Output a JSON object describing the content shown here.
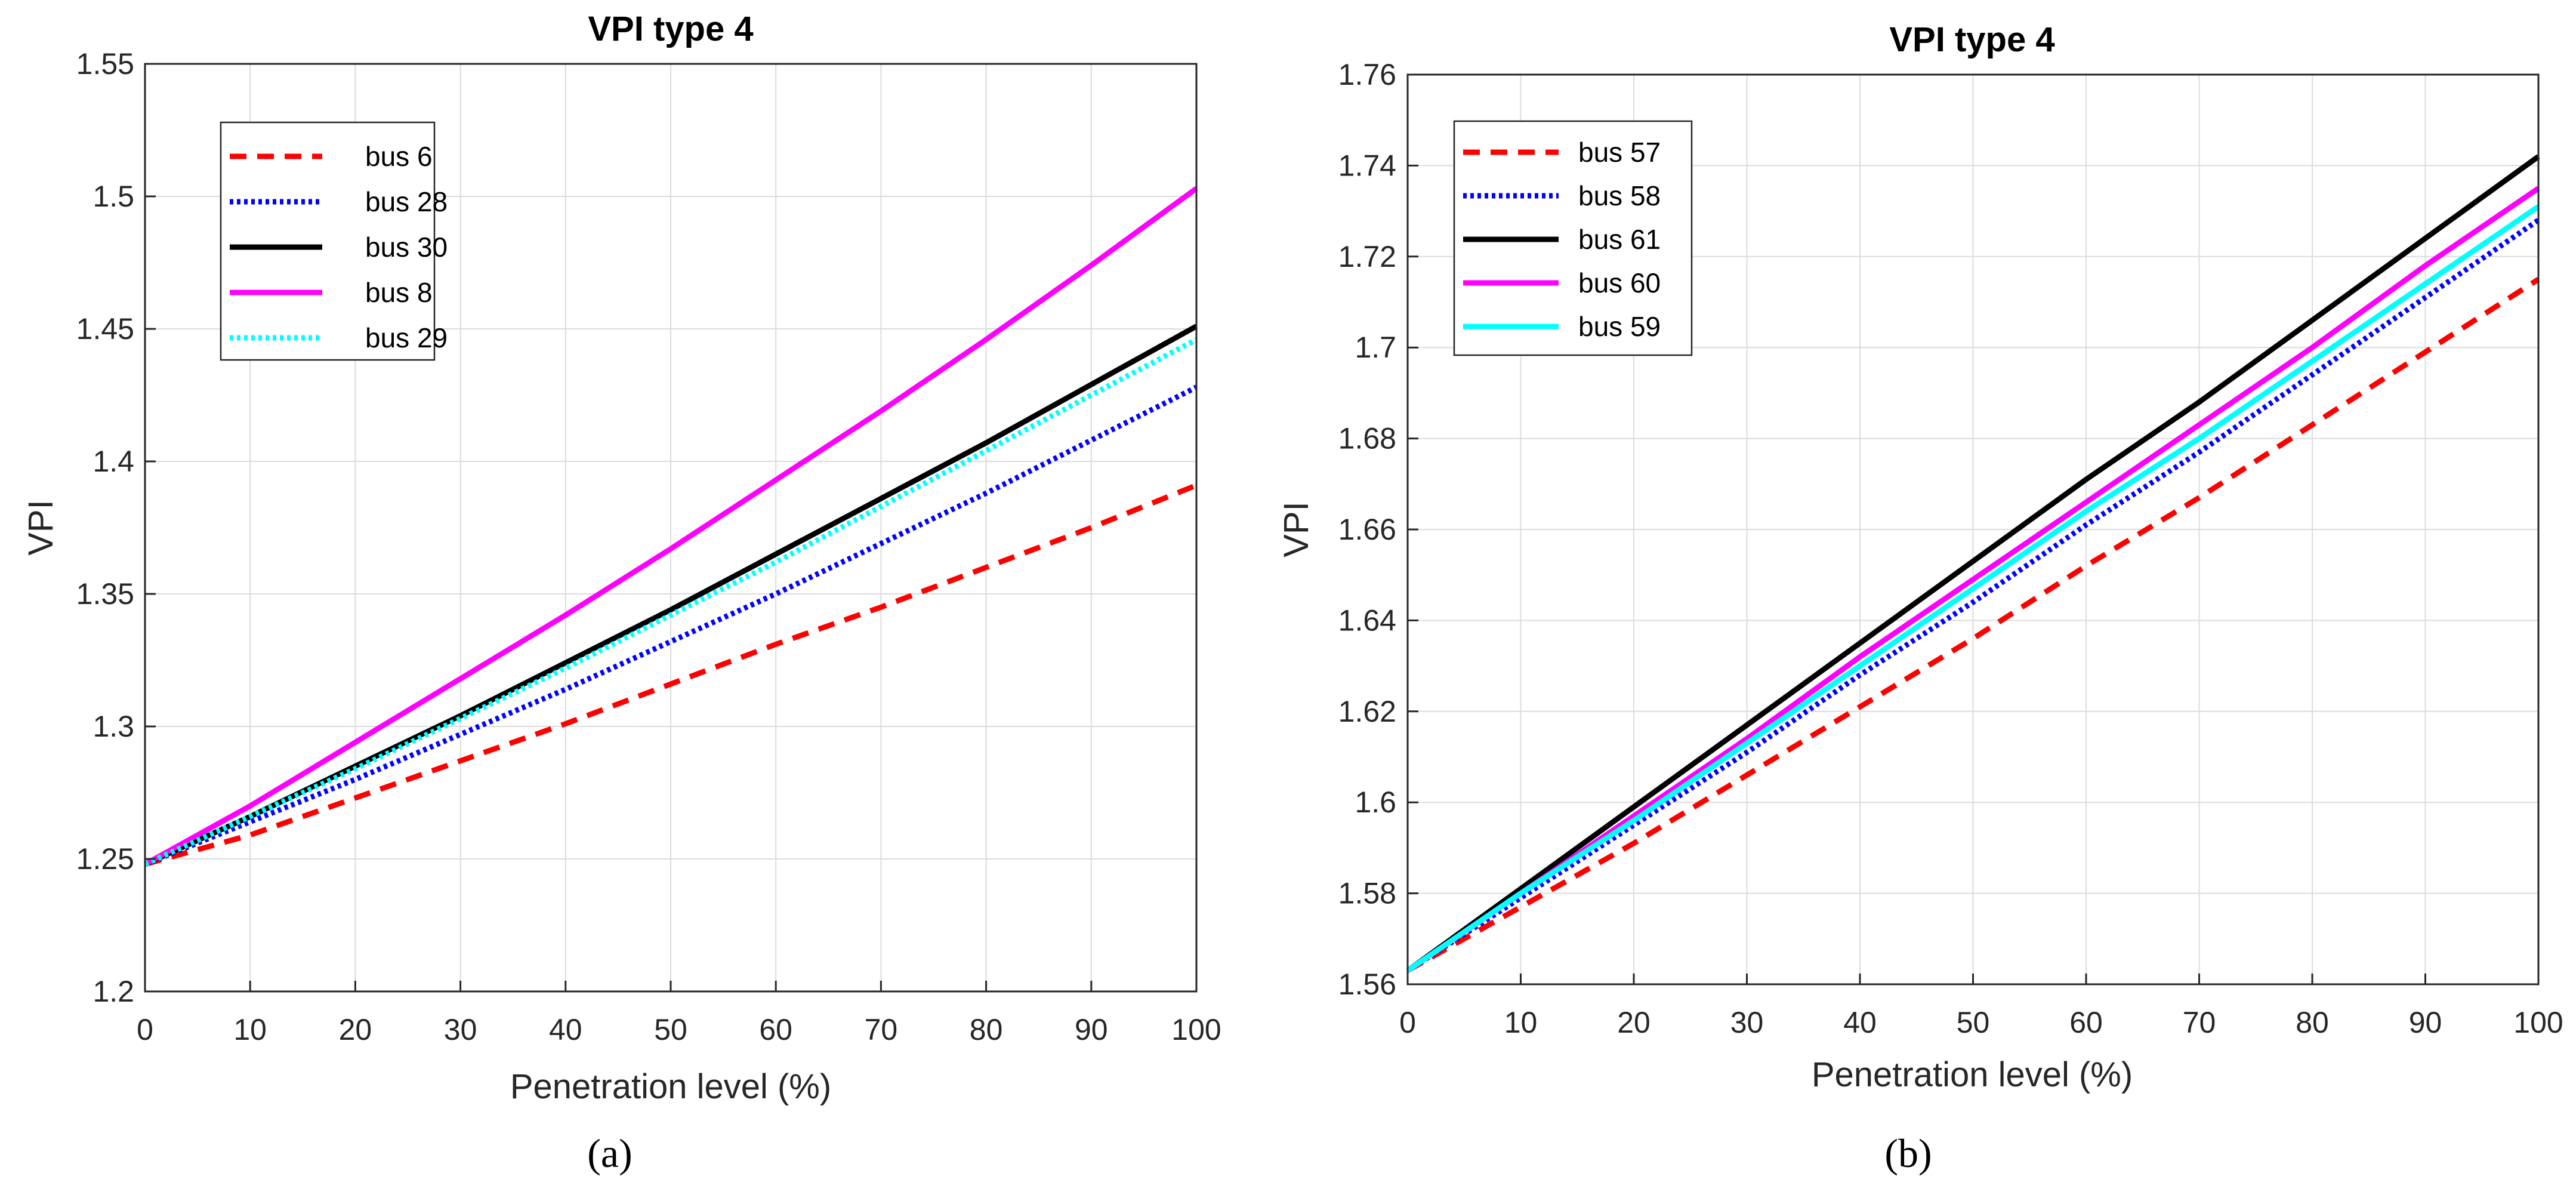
{
  "chart_data": [
    {
      "type": "line",
      "panel": "a",
      "caption": "(a)",
      "title": "VPI type 4",
      "xlabel": "Penetration level (%)",
      "ylabel": "VPI",
      "xlim": [
        0,
        100
      ],
      "ylim": [
        1.2,
        1.55
      ],
      "xticks": [
        0,
        10,
        20,
        30,
        40,
        50,
        60,
        70,
        80,
        90,
        100
      ],
      "yticks": [
        1.2,
        1.25,
        1.3,
        1.35,
        1.4,
        1.45,
        1.5,
        1.55
      ],
      "ytick_labels": [
        "1.2",
        "1.25",
        "1.3",
        "1.35",
        "1.4",
        "1.45",
        "1.5",
        "1.55"
      ],
      "grid": true,
      "legend_position": "top-left",
      "x": [
        0,
        10,
        20,
        30,
        40,
        50,
        60,
        70,
        80,
        90,
        100
      ],
      "series": [
        {
          "name": "bus 6",
          "color": "#ff0000",
          "style": "dashed",
          "values": [
            1.248,
            1.259,
            1.273,
            1.287,
            1.301,
            1.316,
            1.331,
            1.345,
            1.36,
            1.375,
            1.391
          ]
        },
        {
          "name": "bus 28",
          "color": "#0000ff",
          "style": "dotted",
          "values": [
            1.248,
            1.264,
            1.28,
            1.297,
            1.314,
            1.332,
            1.35,
            1.369,
            1.388,
            1.408,
            1.428
          ]
        },
        {
          "name": "bus 30",
          "color": "#000000",
          "style": "solid",
          "values": [
            1.248,
            1.266,
            1.285,
            1.304,
            1.324,
            1.344,
            1.365,
            1.386,
            1.407,
            1.429,
            1.451
          ]
        },
        {
          "name": "bus 8",
          "color": "#ff00ff",
          "style": "solid",
          "values": [
            1.248,
            1.27,
            1.294,
            1.318,
            1.342,
            1.367,
            1.393,
            1.419,
            1.446,
            1.474,
            1.503
          ]
        },
        {
          "name": "bus 29",
          "color": "#00ffff",
          "style": "dotted",
          "values": [
            1.248,
            1.266,
            1.284,
            1.303,
            1.322,
            1.342,
            1.362,
            1.383,
            1.404,
            1.425,
            1.446
          ]
        }
      ]
    },
    {
      "type": "line",
      "panel": "b",
      "caption": "(b)",
      "title": "VPI type 4",
      "xlabel": "Penetration level (%)",
      "ylabel": "VPI",
      "xlim": [
        0,
        100
      ],
      "ylim": [
        1.56,
        1.76
      ],
      "xticks": [
        0,
        10,
        20,
        30,
        40,
        50,
        60,
        70,
        80,
        90,
        100
      ],
      "yticks": [
        1.56,
        1.58,
        1.6,
        1.62,
        1.64,
        1.66,
        1.68,
        1.7,
        1.72,
        1.74,
        1.76
      ],
      "ytick_labels": [
        "1.56",
        "1.58",
        "1.6",
        "1.62",
        "1.64",
        "1.66",
        "1.68",
        "1.7",
        "1.72",
        "1.74",
        "1.76"
      ],
      "grid": true,
      "legend_position": "top-left",
      "x": [
        0,
        10,
        20,
        30,
        40,
        50,
        60,
        70,
        80,
        90,
        100
      ],
      "series": [
        {
          "name": "bus 57",
          "color": "#ff0000",
          "style": "dashed",
          "values": [
            1.563,
            1.577,
            1.591,
            1.606,
            1.621,
            1.636,
            1.652,
            1.667,
            1.683,
            1.699,
            1.715
          ]
        },
        {
          "name": "bus 58",
          "color": "#0000ff",
          "style": "dotted",
          "values": [
            1.563,
            1.579,
            1.595,
            1.611,
            1.628,
            1.644,
            1.661,
            1.677,
            1.694,
            1.711,
            1.728
          ]
        },
        {
          "name": "bus 61",
          "color": "#000000",
          "style": "solid",
          "values": [
            1.563,
            1.581,
            1.599,
            1.617,
            1.635,
            1.653,
            1.671,
            1.688,
            1.706,
            1.724,
            1.742
          ]
        },
        {
          "name": "bus 60",
          "color": "#ff00ff",
          "style": "solid",
          "values": [
            1.563,
            1.58,
            1.597,
            1.614,
            1.632,
            1.649,
            1.666,
            1.683,
            1.7,
            1.718,
            1.735
          ]
        },
        {
          "name": "bus 59",
          "color": "#00ffff",
          "style": "solid",
          "values": [
            1.563,
            1.58,
            1.596,
            1.613,
            1.63,
            1.647,
            1.664,
            1.68,
            1.697,
            1.714,
            1.731
          ]
        }
      ]
    }
  ]
}
